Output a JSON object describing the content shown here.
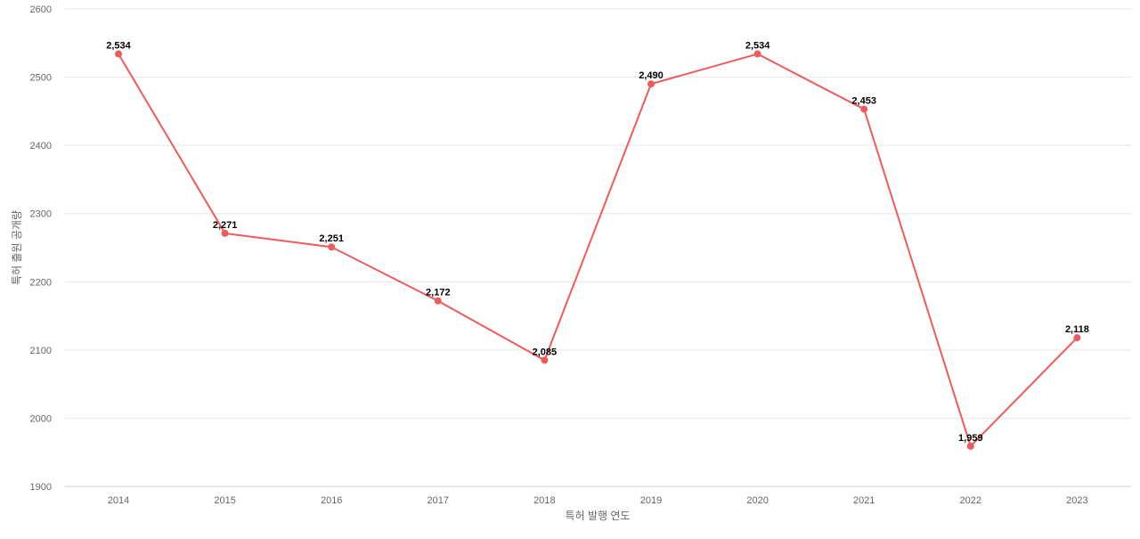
{
  "chart_data": {
    "type": "line",
    "title": "",
    "xlabel": "특허 발행 연도",
    "ylabel": "특허 출원 공개량",
    "x": [
      "2014",
      "2015",
      "2016",
      "2017",
      "2018",
      "2019",
      "2020",
      "2021",
      "2022",
      "2023"
    ],
    "series": [
      {
        "values": [
          2534,
          2271,
          2251,
          2172,
          2085,
          2490,
          2534,
          2453,
          1959,
          2118
        ],
        "labels": [
          "2,534",
          "2,271",
          "2,251",
          "2,172",
          "2,085",
          "2,490",
          "2,534",
          "2,453",
          "1,959",
          "2,118"
        ],
        "color": "#ef5a5a"
      }
    ],
    "ylim": [
      1900,
      2600
    ],
    "yticks": [
      "1900",
      "2000",
      "2100",
      "2200",
      "2300",
      "2400",
      "2500",
      "2600"
    ],
    "grid": true,
    "legend": "none"
  }
}
